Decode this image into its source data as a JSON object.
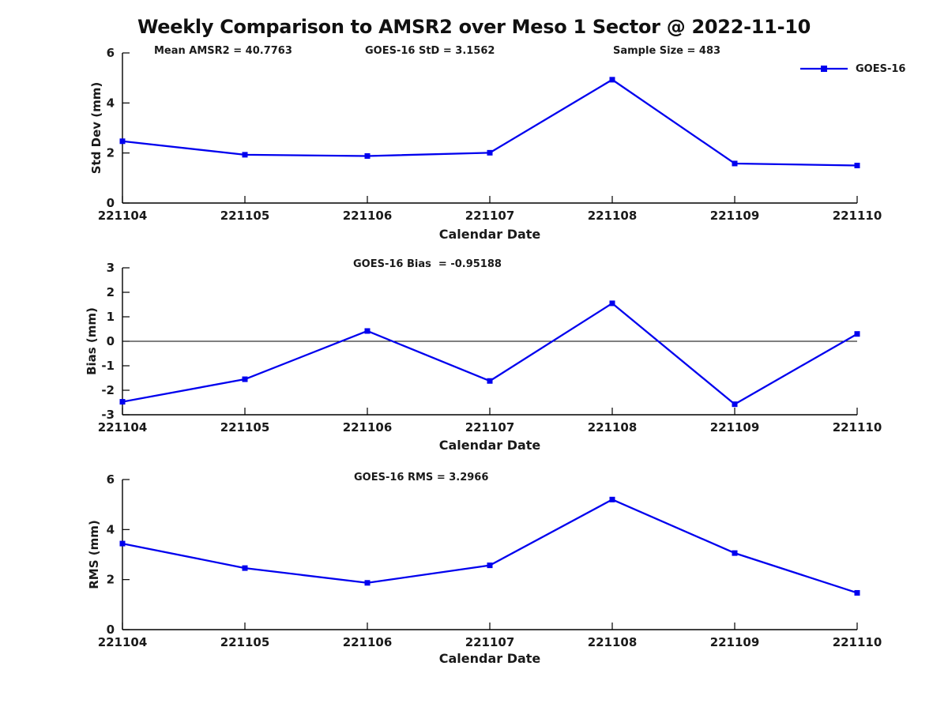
{
  "figure": {
    "title": "Weekly Comparison to AMSR2 over Meso 1 Sector @ 2022-11-10",
    "legend": {
      "label": "GOES-16"
    },
    "colors": {
      "line": "#0000ee",
      "axis": "#000000",
      "text": "#1a1a1a",
      "background": "#ffffff"
    }
  },
  "chart_data": [
    {
      "type": "line",
      "subplot": "std-dev",
      "annotations": [
        {
          "text": "Mean AMSR2 = 40.7763"
        },
        {
          "text": "GOES-16 StD = 3.1562"
        },
        {
          "text": "Sample Size = 483"
        }
      ],
      "xlabel": "Calendar Date",
      "ylabel": "Std Dev (mm)",
      "categories": [
        "221104",
        "221105",
        "221106",
        "221107",
        "221108",
        "221109",
        "221110"
      ],
      "series": [
        {
          "name": "GOES-16",
          "values": [
            2.47,
            1.93,
            1.88,
            2.01,
            4.93,
            1.58,
            1.5
          ]
        }
      ],
      "ylim": [
        0,
        6
      ],
      "yticks": [
        0,
        2,
        4,
        6
      ],
      "zero_line": false,
      "legend_position": "top-right",
      "grid": false
    },
    {
      "type": "line",
      "subplot": "bias",
      "annotations": [
        {
          "text": "GOES-16 Bias  = -0.95188"
        }
      ],
      "xlabel": "Calendar Date",
      "ylabel": "Bias (mm)",
      "categories": [
        "221104",
        "221105",
        "221106",
        "221107",
        "221108",
        "221109",
        "221110"
      ],
      "series": [
        {
          "name": "GOES-16",
          "values": [
            -2.47,
            -1.55,
            0.42,
            -1.62,
            1.55,
            -2.57,
            0.3
          ]
        }
      ],
      "ylim": [
        -3,
        3
      ],
      "yticks": [
        3,
        2,
        1,
        0,
        -1,
        -2,
        -3
      ],
      "zero_line": true,
      "grid": false
    },
    {
      "type": "line",
      "subplot": "rms",
      "annotations": [
        {
          "text": "GOES-16 RMS = 3.2966"
        }
      ],
      "xlabel": "Calendar Date",
      "ylabel": "RMS (mm)",
      "categories": [
        "221104",
        "221105",
        "221106",
        "221107",
        "221108",
        "221109",
        "221110"
      ],
      "series": [
        {
          "name": "GOES-16",
          "values": [
            3.44,
            2.46,
            1.87,
            2.57,
            5.2,
            3.06,
            1.47
          ]
        }
      ],
      "ylim": [
        0,
        6
      ],
      "yticks": [
        0,
        2,
        4,
        6
      ],
      "zero_line": false,
      "grid": false
    }
  ]
}
